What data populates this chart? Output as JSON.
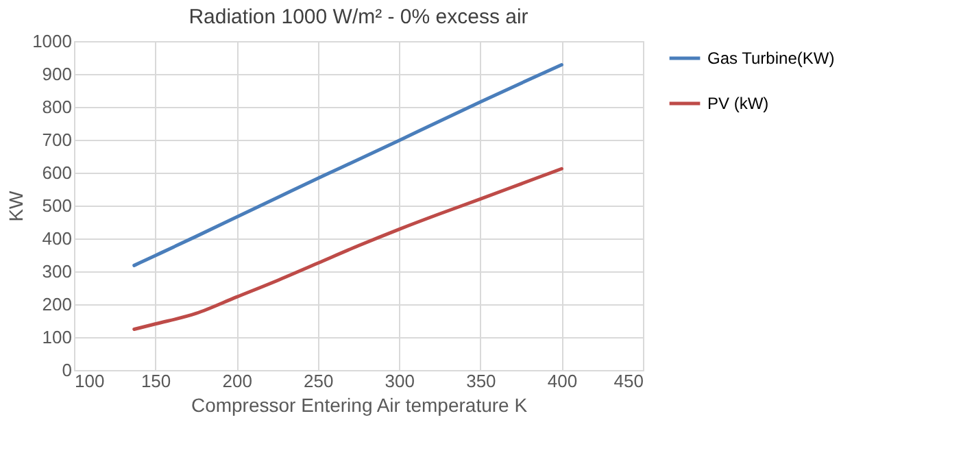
{
  "chart_data": {
    "type": "line",
    "title": "Radiation 1000 W/m² - 0% excess air",
    "xlabel": "Compressor Entering Air temperature K",
    "ylabel": "KW",
    "x": [
      137,
      150,
      175,
      200,
      225,
      250,
      275,
      300,
      325,
      350,
      375,
      400
    ],
    "series": [
      {
        "name": "Gas Turbine(KW)",
        "color": "#4a7ebb",
        "values": [
          318,
          348,
          406,
          465,
          524,
          583,
          640,
          698,
          757,
          815,
          872,
          928
        ]
      },
      {
        "name": "PV (kW)",
        "color": "#be4b48",
        "values": [
          124,
          140,
          172,
          222,
          272,
          325,
          378,
          428,
          475,
          520,
          566,
          612
        ]
      }
    ],
    "xlim": [
      100,
      450
    ],
    "xticks": [
      100,
      150,
      200,
      250,
      300,
      350,
      400,
      450
    ],
    "ylim": [
      0,
      1000
    ],
    "yticks": [
      0,
      100,
      200,
      300,
      400,
      500,
      600,
      700,
      800,
      900,
      1000
    ],
    "grid": true,
    "legend": "right",
    "marker": "none",
    "line_style": "solid"
  }
}
